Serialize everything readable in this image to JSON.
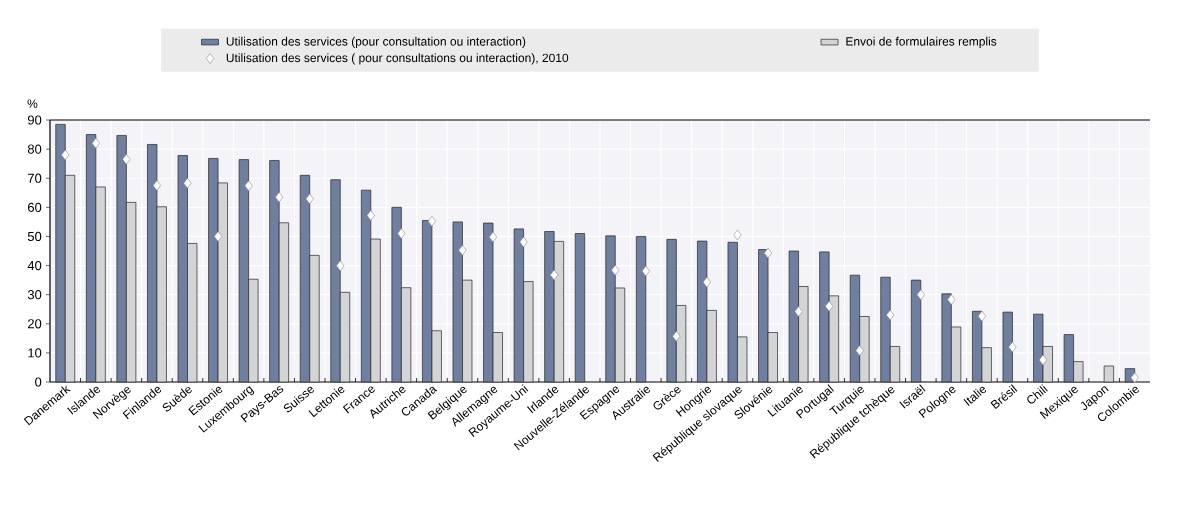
{
  "chart_data": {
    "type": "bar",
    "ylabel": "%",
    "categories": [
      "Danemark",
      "Islande",
      "Norvège",
      "Finlande",
      "Suède",
      "Estonie",
      "Luxembourg",
      "Pays-Bas",
      "Suisse",
      "Lettonie",
      "France",
      "Autriche",
      "Canada",
      "Belgique",
      "Allemagne",
      "Royaume-Uni",
      "Irlande",
      "Nouvelle-Zélande",
      "Espagne",
      "Australie",
      "Grèce",
      "Hongrie",
      "République slovaque",
      "Slovénie",
      "Lituanie",
      "Portugal",
      "Turquie",
      "République tchèque",
      "Israël",
      "Pologne",
      "Italie",
      "Brésil",
      "Chili",
      "Mexique",
      "Japon",
      "Colombie"
    ],
    "series": [
      {
        "name": "Utilisation des services (pour consultation ou interaction)",
        "color": "#6f7fa0",
        "values": [
          88.5,
          85,
          84.7,
          81.6,
          77.8,
          76.8,
          76.4,
          76.1,
          71,
          69.5,
          65.9,
          60,
          55.5,
          55,
          54.6,
          52.6,
          51.7,
          51,
          50.2,
          50,
          49,
          48.4,
          48,
          45.5,
          45,
          44.7,
          36.7,
          36,
          35,
          30.3,
          24.3,
          24,
          23.3,
          16.3,
          null,
          4.6
        ]
      },
      {
        "name": "Envoi de formulaires remplis",
        "color": "#d3d4d6",
        "values": [
          71,
          67,
          61.7,
          60.2,
          47.6,
          68.4,
          35.3,
          54.7,
          43.5,
          30.8,
          49.1,
          32.4,
          17.6,
          35,
          17,
          34.5,
          48.3,
          null,
          32.3,
          null,
          26.3,
          24.6,
          15.5,
          17,
          32.8,
          29.6,
          22.5,
          12.2,
          null,
          18.9,
          11.8,
          null,
          12.2,
          7,
          5.5,
          null
        ]
      },
      {
        "name": "Utilisation des services ( pour consultations ou interaction), 2010",
        "type": "scatter",
        "marker": "diamond",
        "color": "#ffffff",
        "values": [
          78,
          82,
          76.5,
          67.5,
          68.3,
          50,
          67.4,
          63.5,
          62.9,
          39.9,
          57.2,
          51,
          55.2,
          45.3,
          49.8,
          48.1,
          36.8,
          null,
          38.4,
          38.1,
          15.7,
          34.3,
          50.5,
          44.3,
          24.2,
          26,
          10.8,
          23,
          30,
          28.3,
          22.6,
          12,
          7.6,
          null,
          null,
          1.5
        ]
      }
    ],
    "ylim": [
      0,
      90
    ],
    "yticks": [
      0,
      10,
      20,
      30,
      40,
      50,
      60,
      70,
      80,
      90
    ],
    "grid": true,
    "legend": "top"
  }
}
